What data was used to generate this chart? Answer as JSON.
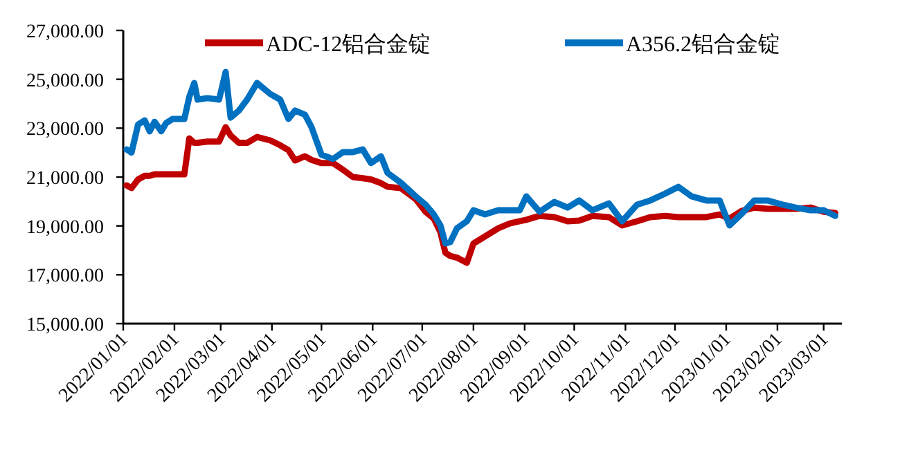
{
  "chart_data": {
    "type": "line",
    "x": [
      "2022-01-03",
      "2022-01-06",
      "2022-01-10",
      "2022-01-14",
      "2022-01-17",
      "2022-01-20",
      "2022-01-24",
      "2022-01-27",
      "2022-01-31",
      "2022-02-07",
      "2022-02-10",
      "2022-02-13",
      "2022-02-15",
      "2022-02-21",
      "2022-02-28",
      "2022-03-04",
      "2022-03-07",
      "2022-03-12",
      "2022-03-17",
      "2022-03-23",
      "2022-03-31",
      "2022-04-06",
      "2022-04-11",
      "2022-04-15",
      "2022-04-21",
      "2022-04-25",
      "2022-05-01",
      "2022-05-08",
      "2022-05-14",
      "2022-05-20",
      "2022-05-26",
      "2022-05-31",
      "2022-06-06",
      "2022-06-10",
      "2022-06-18",
      "2022-06-27",
      "2022-07-03",
      "2022-07-08",
      "2022-07-12",
      "2022-07-15",
      "2022-07-18",
      "2022-07-22",
      "2022-07-28",
      "2022-08-01",
      "2022-08-08",
      "2022-08-16",
      "2022-08-23",
      "2022-08-29",
      "2022-09-02",
      "2022-09-10",
      "2022-09-19",
      "2022-09-27",
      "2022-10-04",
      "2022-10-12",
      "2022-10-22",
      "2022-10-30",
      "2022-11-08",
      "2022-11-16",
      "2022-11-25",
      "2022-12-03",
      "2022-12-11",
      "2022-12-20",
      "2022-12-28",
      "2023-01-03",
      "2023-01-10",
      "2023-01-18",
      "2023-01-26",
      "2023-02-04",
      "2023-02-12",
      "2023-02-21",
      "2023-03-01",
      "2023-03-08"
    ],
    "series": [
      {
        "name": "ADC-12铝合金锭",
        "color": "#c00000",
        "values": [
          20660,
          20550,
          20900,
          21050,
          21050,
          21110,
          21110,
          21110,
          21110,
          21110,
          22580,
          22400,
          22400,
          22450,
          22450,
          23040,
          22700,
          22400,
          22400,
          22640,
          22500,
          22300,
          22100,
          21680,
          21850,
          21700,
          21570,
          21570,
          21300,
          21000,
          20950,
          20900,
          20750,
          20600,
          20550,
          20100,
          19580,
          19300,
          18740,
          17900,
          17770,
          17700,
          17490,
          18280,
          18570,
          18900,
          19100,
          19190,
          19250,
          19410,
          19360,
          19190,
          19220,
          19410,
          19360,
          19020,
          19190,
          19360,
          19410,
          19360,
          19360,
          19360,
          19470,
          19300,
          19600,
          19750,
          19700,
          19700,
          19700,
          19750,
          19580,
          19530
        ]
      },
      {
        "name": "A356.2铝合金锭",
        "color": "#0070c0",
        "values": [
          22130,
          22000,
          23150,
          23320,
          22870,
          23260,
          22870,
          23210,
          23380,
          23380,
          24280,
          24850,
          24170,
          24230,
          24170,
          25300,
          23430,
          23720,
          24170,
          24850,
          24400,
          24170,
          23380,
          23720,
          23550,
          23040,
          21910,
          21740,
          22020,
          22020,
          22130,
          21570,
          21850,
          21170,
          20770,
          20210,
          19870,
          19470,
          19020,
          18280,
          18340,
          18900,
          19190,
          19640,
          19470,
          19640,
          19640,
          19640,
          20210,
          19580,
          19980,
          19750,
          20040,
          19640,
          19920,
          19190,
          19870,
          20040,
          20320,
          20600,
          20210,
          20040,
          20040,
          19020,
          19470,
          20040,
          20040,
          19870,
          19750,
          19640,
          19640,
          19410
        ]
      }
    ],
    "xlim": [
      "2022-01-01",
      "2023-03-12"
    ],
    "xticks": [
      {
        "value": "2022-01-01",
        "label": "2022/01/01"
      },
      {
        "value": "2022-02-01",
        "label": "2022/02/01"
      },
      {
        "value": "2022-03-01",
        "label": "2022/03/01"
      },
      {
        "value": "2022-04-01",
        "label": "2022/04/01"
      },
      {
        "value": "2022-05-01",
        "label": "2022/05/01"
      },
      {
        "value": "2022-06-01",
        "label": "2022/06/01"
      },
      {
        "value": "2022-07-01",
        "label": "2022/07/01"
      },
      {
        "value": "2022-08-01",
        "label": "2022/08/01"
      },
      {
        "value": "2022-09-01",
        "label": "2022/09/01"
      },
      {
        "value": "2022-10-01",
        "label": "2022/10/01"
      },
      {
        "value": "2022-11-01",
        "label": "2022/11/01"
      },
      {
        "value": "2022-12-01",
        "label": "2022/12/01"
      },
      {
        "value": "2023-01-01",
        "label": "2023/01/01"
      },
      {
        "value": "2023-02-01",
        "label": "2023/02/01"
      },
      {
        "value": "2023-03-01",
        "label": "2023/03/01"
      }
    ],
    "ylim": [
      15000,
      27000
    ],
    "yticks": [
      {
        "value": 15000,
        "label": "15,000.00"
      },
      {
        "value": 17000,
        "label": "17,000.00"
      },
      {
        "value": 19000,
        "label": "19,000.00"
      },
      {
        "value": 21000,
        "label": "21,000.00"
      },
      {
        "value": 23000,
        "label": "23,000.00"
      },
      {
        "value": 25000,
        "label": "25,000.00"
      },
      {
        "value": 27000,
        "label": "27,000.00"
      }
    ],
    "legend": "top",
    "grid": false,
    "marker": "none",
    "line_style": "solid"
  }
}
